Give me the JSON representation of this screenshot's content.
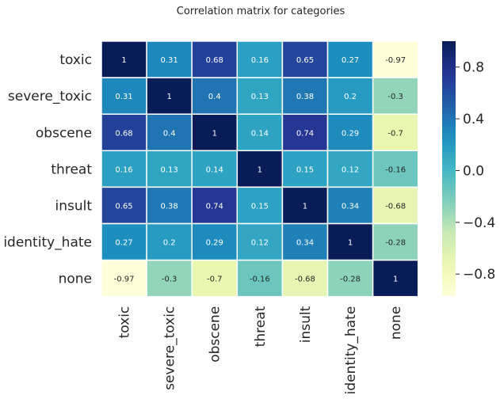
{
  "chart_data": {
    "type": "heatmap",
    "title": "Correlation matrix for categories",
    "rows": [
      "toxic",
      "severe_toxic",
      "obscene",
      "threat",
      "insult",
      "identity_hate",
      "none"
    ],
    "columns": [
      "toxic",
      "severe_toxic",
      "obscene",
      "threat",
      "insult",
      "identity_hate",
      "none"
    ],
    "values": [
      [
        1,
        0.31,
        0.68,
        0.16,
        0.65,
        0.27,
        -0.97
      ],
      [
        0.31,
        1,
        0.4,
        0.13,
        0.38,
        0.2,
        -0.3
      ],
      [
        0.68,
        0.4,
        1,
        0.14,
        0.74,
        0.29,
        -0.7
      ],
      [
        0.16,
        0.13,
        0.14,
        1,
        0.15,
        0.12,
        -0.16
      ],
      [
        0.65,
        0.38,
        0.74,
        0.15,
        1,
        0.34,
        -0.68
      ],
      [
        0.27,
        0.2,
        0.29,
        0.12,
        0.34,
        1,
        -0.28
      ],
      [
        -0.97,
        -0.3,
        -0.7,
        -0.16,
        -0.68,
        -0.28,
        1
      ]
    ],
    "annotations": [
      [
        "1",
        "0.31",
        "0.68",
        "0.16",
        "0.65",
        "0.27",
        "-0.97"
      ],
      [
        "0.31",
        "1",
        "0.4",
        "0.13",
        "0.38",
        "0.2",
        "-0.3"
      ],
      [
        "0.68",
        "0.4",
        "1",
        "0.14",
        "0.74",
        "0.29",
        "-0.7"
      ],
      [
        "0.16",
        "0.13",
        "0.14",
        "1",
        "0.15",
        "0.12",
        "-0.16"
      ],
      [
        "0.65",
        "0.38",
        "0.74",
        "0.15",
        "1",
        "0.34",
        "-0.68"
      ],
      [
        "0.27",
        "0.2",
        "0.29",
        "0.12",
        "0.34",
        "1",
        "-0.28"
      ],
      [
        "-0.97",
        "-0.3",
        "-0.7",
        "-0.16",
        "-0.68",
        "-0.28",
        "1"
      ]
    ],
    "colormap": "YlGnBu",
    "vmin": -0.97,
    "vmax": 1,
    "colorbar": {
      "ticks": [
        0.8,
        0.4,
        0.0,
        -0.4,
        -0.8
      ],
      "tick_labels": [
        "0.8",
        "0.4",
        "0.0",
        "−0.4",
        "−0.8"
      ],
      "placement": "right"
    },
    "xlabel": "",
    "ylabel": ""
  }
}
